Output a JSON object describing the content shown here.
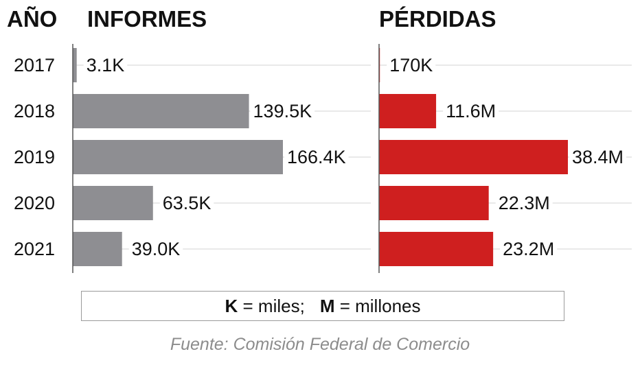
{
  "headers": {
    "year": "AÑO",
    "reports": "INFORMES",
    "losses": "PÉRDIDAS"
  },
  "legend": {
    "k_key": "K",
    "k_text": " = miles;",
    "m_key": "M",
    "m_text": " = millones"
  },
  "source": "Fuente: Comisión Federal de Comercio",
  "colors": {
    "reports_bar": "#8e8e92",
    "losses_bar": "#cf1f1f",
    "text": "#111111",
    "gridline": "#dcdcdc",
    "axis": "#555555"
  },
  "chart_data": [
    {
      "type": "bar",
      "orientation": "horizontal",
      "title": "INFORMES",
      "categories": [
        "2017",
        "2018",
        "2019",
        "2020",
        "2021"
      ],
      "values": [
        3.1,
        139.5,
        166.4,
        63.5,
        39.0
      ],
      "unit": "K",
      "data_labels": [
        "3.1K",
        "139.5K",
        "166.4K",
        "63.5K",
        "39.0K"
      ],
      "xlim": [
        0,
        166.4
      ],
      "grid": false
    },
    {
      "type": "bar",
      "orientation": "horizontal",
      "title": "PÉRDIDAS",
      "categories": [
        "2017",
        "2018",
        "2019",
        "2020",
        "2021"
      ],
      "values": [
        0.17,
        11.6,
        38.4,
        22.3,
        23.2
      ],
      "unit": "M",
      "data_labels": [
        "170K",
        "11.6M",
        "38.4M",
        "22.3M",
        "23.2M"
      ],
      "xlim": [
        0,
        38.4
      ],
      "grid": false
    }
  ]
}
